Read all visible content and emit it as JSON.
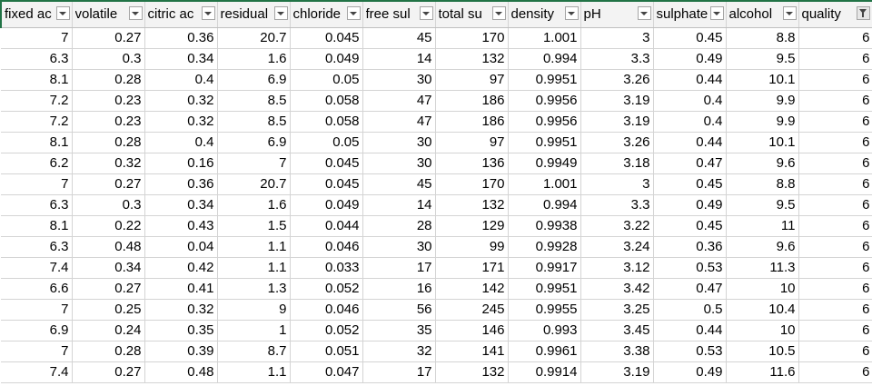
{
  "columns": [
    {
      "label": "fixed ac",
      "filter_active": false
    },
    {
      "label": "volatile",
      "filter_active": false
    },
    {
      "label": "citric ac",
      "filter_active": false
    },
    {
      "label": "residual",
      "filter_active": false
    },
    {
      "label": "chloride",
      "filter_active": false
    },
    {
      "label": "free sul",
      "filter_active": false
    },
    {
      "label": "total su",
      "filter_active": false
    },
    {
      "label": "density",
      "filter_active": false
    },
    {
      "label": "pH",
      "filter_active": false
    },
    {
      "label": "sulphate",
      "filter_active": false
    },
    {
      "label": "alcohol",
      "filter_active": false
    },
    {
      "label": "quality",
      "filter_active": true
    }
  ],
  "rows": [
    [
      "7",
      "0.27",
      "0.36",
      "20.7",
      "0.045",
      "45",
      "170",
      "1.001",
      "3",
      "0.45",
      "8.8",
      "6"
    ],
    [
      "6.3",
      "0.3",
      "0.34",
      "1.6",
      "0.049",
      "14",
      "132",
      "0.994",
      "3.3",
      "0.49",
      "9.5",
      "6"
    ],
    [
      "8.1",
      "0.28",
      "0.4",
      "6.9",
      "0.05",
      "30",
      "97",
      "0.9951",
      "3.26",
      "0.44",
      "10.1",
      "6"
    ],
    [
      "7.2",
      "0.23",
      "0.32",
      "8.5",
      "0.058",
      "47",
      "186",
      "0.9956",
      "3.19",
      "0.4",
      "9.9",
      "6"
    ],
    [
      "7.2",
      "0.23",
      "0.32",
      "8.5",
      "0.058",
      "47",
      "186",
      "0.9956",
      "3.19",
      "0.4",
      "9.9",
      "6"
    ],
    [
      "8.1",
      "0.28",
      "0.4",
      "6.9",
      "0.05",
      "30",
      "97",
      "0.9951",
      "3.26",
      "0.44",
      "10.1",
      "6"
    ],
    [
      "6.2",
      "0.32",
      "0.16",
      "7",
      "0.045",
      "30",
      "136",
      "0.9949",
      "3.18",
      "0.47",
      "9.6",
      "6"
    ],
    [
      "7",
      "0.27",
      "0.36",
      "20.7",
      "0.045",
      "45",
      "170",
      "1.001",
      "3",
      "0.45",
      "8.8",
      "6"
    ],
    [
      "6.3",
      "0.3",
      "0.34",
      "1.6",
      "0.049",
      "14",
      "132",
      "0.994",
      "3.3",
      "0.49",
      "9.5",
      "6"
    ],
    [
      "8.1",
      "0.22",
      "0.43",
      "1.5",
      "0.044",
      "28",
      "129",
      "0.9938",
      "3.22",
      "0.45",
      "11",
      "6"
    ],
    [
      "6.3",
      "0.48",
      "0.04",
      "1.1",
      "0.046",
      "30",
      "99",
      "0.9928",
      "3.24",
      "0.36",
      "9.6",
      "6"
    ],
    [
      "7.4",
      "0.34",
      "0.42",
      "1.1",
      "0.033",
      "17",
      "171",
      "0.9917",
      "3.12",
      "0.53",
      "11.3",
      "6"
    ],
    [
      "6.6",
      "0.27",
      "0.41",
      "1.3",
      "0.052",
      "16",
      "142",
      "0.9951",
      "3.42",
      "0.47",
      "10",
      "6"
    ],
    [
      "7",
      "0.25",
      "0.32",
      "9",
      "0.046",
      "56",
      "245",
      "0.9955",
      "3.25",
      "0.5",
      "10.4",
      "6"
    ],
    [
      "6.9",
      "0.24",
      "0.35",
      "1",
      "0.052",
      "35",
      "146",
      "0.993",
      "3.45",
      "0.44",
      "10",
      "6"
    ],
    [
      "7",
      "0.28",
      "0.39",
      "8.7",
      "0.051",
      "32",
      "141",
      "0.9961",
      "3.38",
      "0.53",
      "10.5",
      "6"
    ],
    [
      "7.4",
      "0.27",
      "0.48",
      "1.1",
      "0.047",
      "17",
      "132",
      "0.9914",
      "3.19",
      "0.49",
      "11.6",
      "6"
    ]
  ]
}
